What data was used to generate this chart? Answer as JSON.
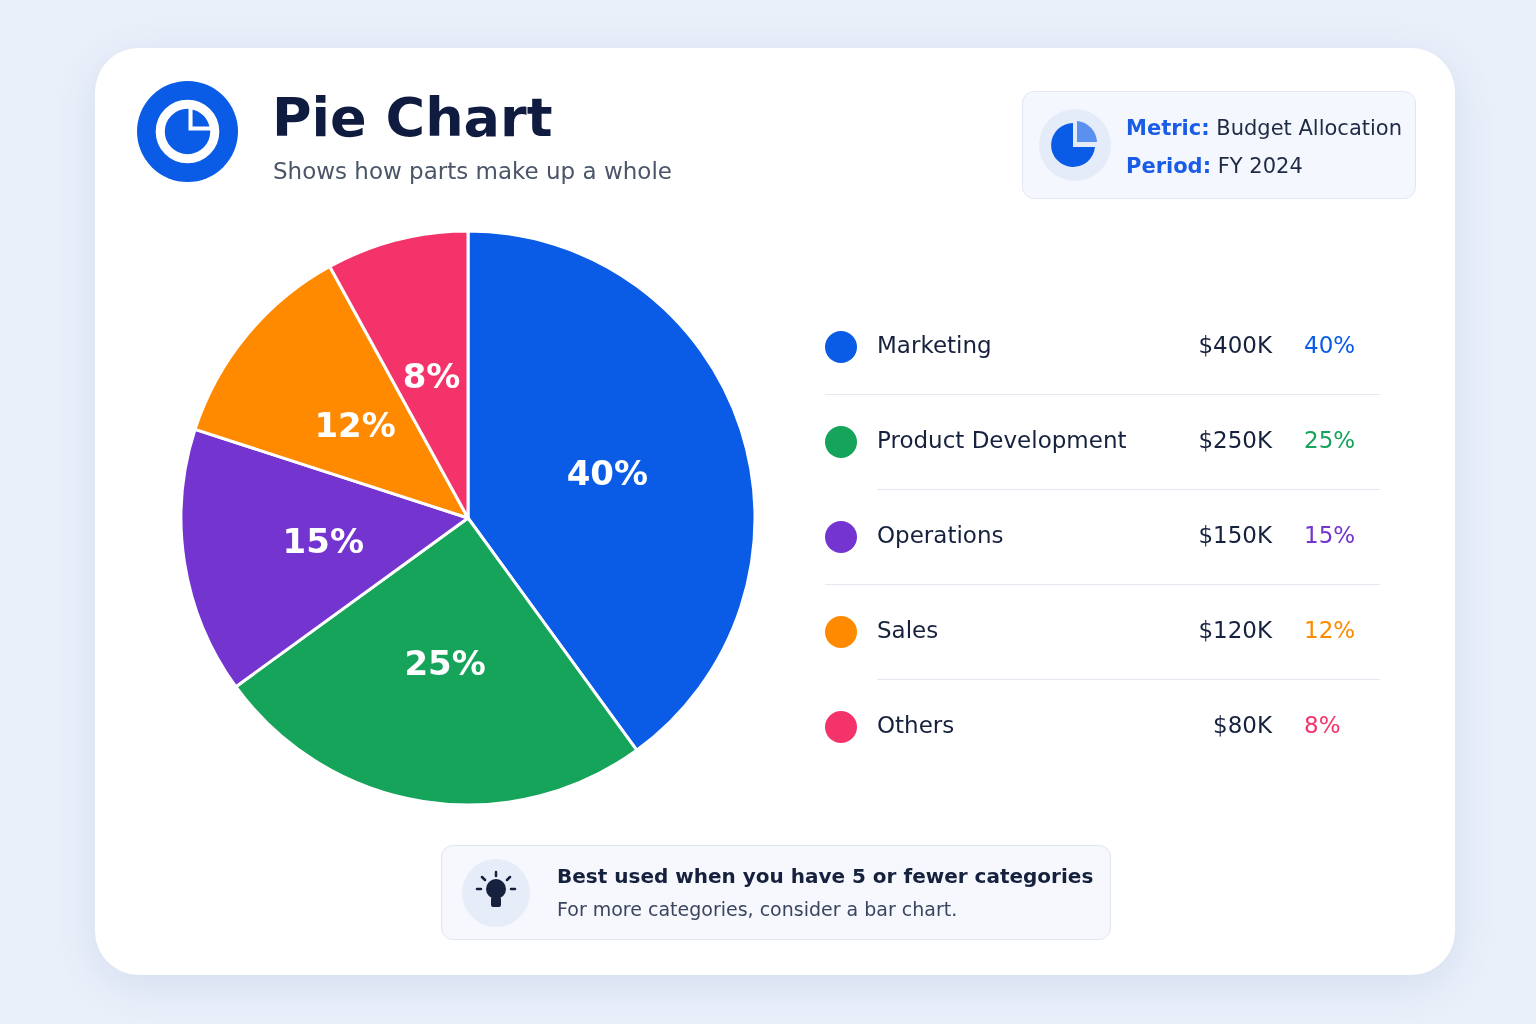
{
  "chart_data": {
    "type": "pie",
    "title": "Pie Chart",
    "subtitle": "Shows how parts make up a whole",
    "categories": [
      "Marketing",
      "Product Development",
      "Operations",
      "Sales",
      "Others"
    ],
    "values": [
      40,
      25,
      15,
      12,
      8
    ],
    "colors": [
      "#0a5ce6",
      "#16a35a",
      "#7434cf",
      "#ff8a00",
      "#f5336b"
    ],
    "value_labels": [
      "40%",
      "25%",
      "15%",
      "12%",
      "8%"
    ],
    "legend": "right",
    "annotations": [
      {
        "text": "$400K",
        "x": "Marketing"
      },
      {
        "text": "$250K",
        "x": "Product Development"
      },
      {
        "text": "$150K",
        "x": "Operations"
      },
      {
        "text": "$120K",
        "x": "Sales"
      },
      {
        "text": "$80K",
        "x": "Others"
      },
      "Metric: Budget Allocation",
      "Period: FY 2024",
      "Best used when you have 5 or fewer categories",
      "For more categories, consider a bar chart."
    ]
  }
}
